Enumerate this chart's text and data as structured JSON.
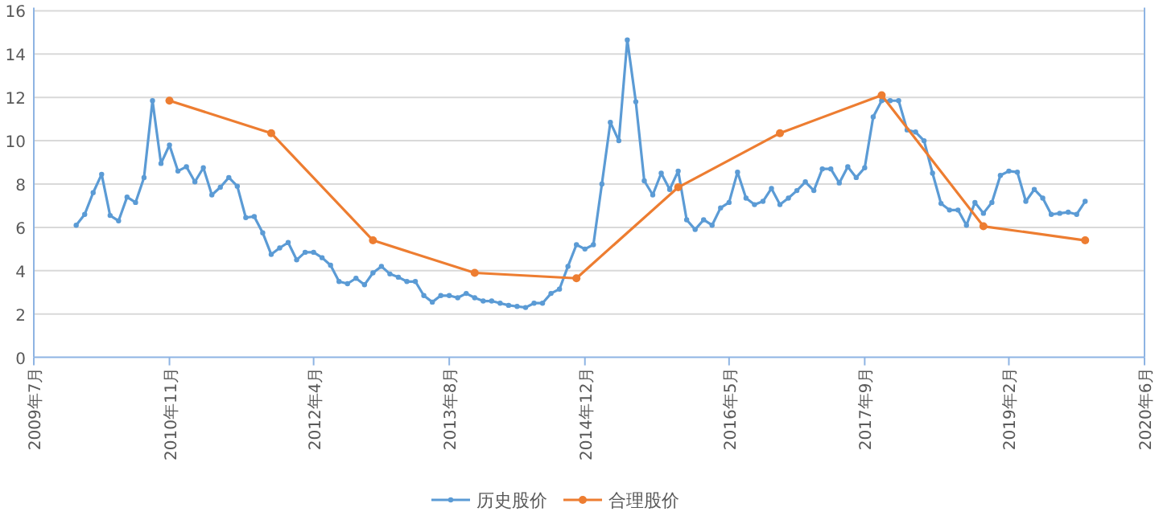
{
  "chart_data": {
    "type": "line",
    "x": [
      "2009-12",
      "2010-01",
      "2010-02",
      "2010-03",
      "2010-04",
      "2010-05",
      "2010-06",
      "2010-07",
      "2010-08",
      "2010-09",
      "2010-10",
      "2010-11",
      "2010-12",
      "2011-01",
      "2011-02",
      "2011-03",
      "2011-04",
      "2011-05",
      "2011-06",
      "2011-07",
      "2011-08",
      "2011-09",
      "2011-10",
      "2011-11",
      "2011-12",
      "2012-01",
      "2012-02",
      "2012-03",
      "2012-04",
      "2012-05",
      "2012-06",
      "2012-07",
      "2012-08",
      "2012-09",
      "2012-10",
      "2012-11",
      "2012-12",
      "2013-01",
      "2013-02",
      "2013-03",
      "2013-04",
      "2013-05",
      "2013-06",
      "2013-07",
      "2013-08",
      "2013-09",
      "2013-10",
      "2013-11",
      "2013-12",
      "2014-01",
      "2014-02",
      "2014-03",
      "2014-04",
      "2014-05",
      "2014-06",
      "2014-07",
      "2014-08",
      "2014-09",
      "2014-10",
      "2014-11",
      "2014-12",
      "2015-01",
      "2015-02",
      "2015-03",
      "2015-04",
      "2015-05",
      "2015-06",
      "2015-07",
      "2015-08",
      "2015-09",
      "2015-10",
      "2015-11",
      "2015-12",
      "2016-01",
      "2016-02",
      "2016-03",
      "2016-04",
      "2016-05",
      "2016-06",
      "2016-07",
      "2016-08",
      "2016-09",
      "2016-10",
      "2016-11",
      "2016-12",
      "2017-01",
      "2017-02",
      "2017-03",
      "2017-04",
      "2017-05",
      "2017-06",
      "2017-07",
      "2017-08",
      "2017-09",
      "2017-10",
      "2017-11",
      "2017-12",
      "2018-01",
      "2018-02",
      "2018-03",
      "2018-04",
      "2018-05",
      "2018-06",
      "2018-07",
      "2018-08",
      "2018-09",
      "2018-10",
      "2018-11",
      "2018-12",
      "2019-01",
      "2019-02",
      "2019-03",
      "2019-04",
      "2019-05",
      "2019-06",
      "2019-07",
      "2019-08",
      "2019-09",
      "2019-10",
      "2019-11"
    ],
    "series": [
      {
        "name": "历史股价",
        "color": "#5b9bd5",
        "values": [
          6.1,
          6.6,
          7.6,
          8.45,
          6.55,
          6.3,
          7.4,
          7.15,
          8.3,
          11.85,
          8.95,
          9.8,
          8.6,
          8.8,
          8.1,
          8.75,
          7.5,
          7.85,
          8.3,
          7.9,
          6.45,
          6.5,
          5.75,
          4.75,
          5.05,
          5.3,
          4.5,
          4.85,
          4.85,
          4.6,
          4.25,
          3.5,
          3.4,
          3.65,
          3.35,
          3.9,
          4.2,
          3.85,
          3.7,
          3.5,
          3.5,
          2.85,
          2.55,
          2.85,
          2.85,
          2.75,
          2.95,
          2.75,
          2.6,
          2.6,
          2.5,
          2.4,
          2.35,
          2.3,
          2.5,
          2.5,
          2.95,
          3.15,
          4.2,
          5.2,
          5.0,
          5.2,
          8.0,
          10.85,
          10.0,
          14.65,
          11.8,
          8.15,
          7.5,
          8.5,
          7.75,
          8.6,
          6.35,
          5.9,
          6.35,
          6.1,
          6.9,
          7.15,
          8.55,
          7.35,
          7.05,
          7.2,
          7.8,
          7.05,
          7.35,
          7.7,
          8.1,
          7.7,
          8.7,
          8.7,
          8.05,
          8.8,
          8.3,
          8.75,
          11.1,
          11.85,
          11.85,
          11.85,
          10.5,
          10.4,
          10.0,
          8.5,
          7.1,
          6.8,
          6.8,
          6.1,
          7.15,
          6.65,
          7.15,
          8.4,
          8.6,
          8.55,
          7.2,
          7.75,
          7.35,
          6.6,
          6.65,
          6.7,
          6.6,
          7.2
        ]
      },
      {
        "name": "合理股价",
        "color": "#ed7d31",
        "x": [
          "2010-11",
          "2011-11",
          "2012-11",
          "2013-11",
          "2014-11",
          "2015-11",
          "2016-11",
          "2017-11",
          "2018-11",
          "2019-11"
        ],
        "values": [
          11.85,
          10.35,
          5.4,
          3.9,
          3.65,
          7.85,
          10.35,
          12.1,
          6.05,
          5.4
        ]
      }
    ],
    "xlim": [
      "2009-07",
      "2020-06"
    ],
    "xticks": [
      {
        "value": "2009-07",
        "label": "2009年7月"
      },
      {
        "value": "2010-11",
        "label": "2010年11月"
      },
      {
        "value": "2012-04",
        "label": "2012年4月"
      },
      {
        "value": "2013-08",
        "label": "2013年8月"
      },
      {
        "value": "2014-12",
        "label": "2014年12月"
      },
      {
        "value": "2016-05",
        "label": "2016年5月"
      },
      {
        "value": "2017-09",
        "label": "2017年9月"
      },
      {
        "value": "2019-02",
        "label": "2019年2月"
      },
      {
        "value": "2020-06",
        "label": "2020年6月"
      }
    ],
    "ylim": [
      0,
      16
    ],
    "yticks": [
      0,
      2,
      4,
      6,
      8,
      10,
      12,
      14,
      16
    ],
    "grid": "y",
    "legend": "bottom",
    "marker": "circle",
    "line_style": "solid"
  }
}
